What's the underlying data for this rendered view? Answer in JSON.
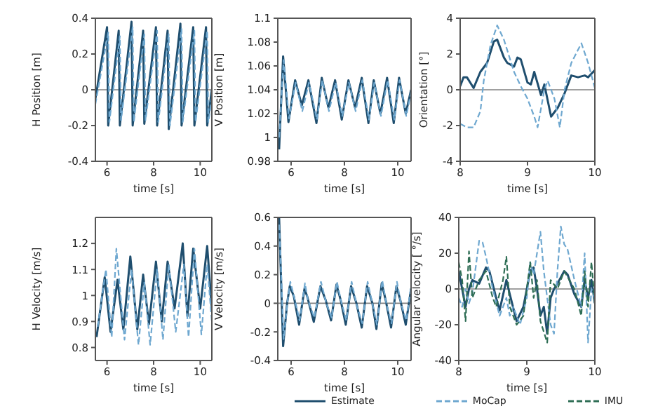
{
  "chart_data": [
    {
      "type": "line",
      "xlabel": "time [s]",
      "ylabel": "H Position [m]",
      "xlim": [
        5.5,
        10.5
      ],
      "xticks": [
        6,
        8,
        10
      ],
      "ylim": [
        -0.4,
        0.4
      ],
      "yticks": [
        -0.4,
        -0.2,
        0,
        0.2,
        0.4
      ],
      "ref_lines": [
        {
          "axis": "y",
          "value": 0,
          "color": "#808080"
        }
      ],
      "series": [
        {
          "color": "#1f4e6e",
          "line_style": "solid",
          "x": [
            5.5,
            6.0,
            6.05,
            6.5,
            6.55,
            7.05,
            7.1,
            7.55,
            7.6,
            8.1,
            8.15,
            8.6,
            8.65,
            9.15,
            9.2,
            9.7,
            9.75,
            10.25,
            10.3,
            10.5
          ],
          "values": [
            -0.05,
            0.35,
            -0.2,
            0.33,
            -0.2,
            0.38,
            -0.2,
            0.33,
            -0.19,
            0.35,
            -0.2,
            0.33,
            -0.22,
            0.37,
            -0.2,
            0.35,
            -0.2,
            0.35,
            -0.2,
            0.0
          ]
        },
        {
          "color": "#6fa8d0",
          "line_style": "dashed",
          "x": [
            5.5,
            6.05,
            6.1,
            6.55,
            6.6,
            7.1,
            7.15,
            7.6,
            7.65,
            8.15,
            8.2,
            8.65,
            8.7,
            9.2,
            9.25,
            9.75,
            9.8,
            10.3,
            10.35,
            10.5
          ],
          "values": [
            -0.08,
            0.32,
            -0.18,
            0.3,
            -0.17,
            0.35,
            -0.18,
            0.31,
            -0.17,
            0.33,
            -0.18,
            0.31,
            -0.2,
            0.34,
            -0.18,
            0.33,
            -0.18,
            0.33,
            -0.18,
            -0.05
          ]
        }
      ]
    },
    {
      "type": "line",
      "xlabel": "time [s]",
      "ylabel": "V Position [m]",
      "xlim": [
        5.5,
        10.5
      ],
      "xticks": [
        6,
        8,
        10
      ],
      "ylim": [
        0.98,
        1.1
      ],
      "yticks": [
        0.98,
        1,
        1.02,
        1.04,
        1.06,
        1.08,
        1.1
      ],
      "series": [
        {
          "color": "#1f4e6e",
          "line_style": "solid",
          "x": [
            5.55,
            5.7,
            5.9,
            6.15,
            6.4,
            6.65,
            6.95,
            7.15,
            7.4,
            7.65,
            7.9,
            8.15,
            8.4,
            8.65,
            8.9,
            9.1,
            9.35,
            9.6,
            9.85,
            10.05,
            10.3,
            10.5
          ],
          "values": [
            0.99,
            1.068,
            1.013,
            1.048,
            1.027,
            1.048,
            1.012,
            1.05,
            1.025,
            1.048,
            1.015,
            1.048,
            1.025,
            1.05,
            1.012,
            1.048,
            1.02,
            1.05,
            1.012,
            1.05,
            1.02,
            1.04
          ]
        },
        {
          "color": "#6fa8d0",
          "line_style": "dashed",
          "x": [
            5.55,
            5.72,
            5.92,
            6.17,
            6.42,
            6.67,
            6.97,
            7.17,
            7.42,
            7.67,
            7.92,
            8.17,
            8.42,
            8.67,
            8.92,
            9.12,
            9.37,
            9.62,
            9.87,
            10.07,
            10.32,
            10.5
          ],
          "values": [
            1.0,
            1.065,
            1.016,
            1.046,
            1.022,
            1.046,
            1.015,
            1.048,
            1.022,
            1.046,
            1.018,
            1.046,
            1.022,
            1.048,
            1.015,
            1.046,
            1.018,
            1.048,
            1.015,
            1.048,
            1.018,
            1.038
          ]
        }
      ]
    },
    {
      "type": "line",
      "xlabel": "time [s]",
      "ylabel": "Orientation [°]",
      "xlim": [
        8,
        10
      ],
      "xticks": [
        8,
        9,
        10
      ],
      "ylim": [
        -4,
        4
      ],
      "yticks": [
        -4,
        -2,
        0,
        2,
        4
      ],
      "ref_lines": [
        {
          "axis": "y",
          "value": 0,
          "color": "#808080"
        }
      ],
      "series": [
        {
          "color": "#1f4e6e",
          "line_style": "solid",
          "x": [
            8,
            8.05,
            8.1,
            8.2,
            8.3,
            8.4,
            8.5,
            8.55,
            8.65,
            8.7,
            8.8,
            8.85,
            8.9,
            9.0,
            9.05,
            9.1,
            9.2,
            9.25,
            9.35,
            9.45,
            9.55,
            9.65,
            9.75,
            9.85,
            9.9,
            10
          ],
          "values": [
            0.2,
            0.7,
            0.7,
            0.1,
            1,
            1.5,
            2.7,
            2.8,
            1.8,
            1.5,
            1.3,
            1.8,
            1.7,
            0.4,
            0.3,
            1.0,
            -0.3,
            0.3,
            -1.5,
            -1.0,
            -0.2,
            0.8,
            0.7,
            0.8,
            0.7,
            1.1
          ]
        },
        {
          "color": "#6fa8d0",
          "line_style": "dashed",
          "x": [
            8,
            8.1,
            8.2,
            8.3,
            8.35,
            8.45,
            8.55,
            8.65,
            8.8,
            8.9,
            9.0,
            9.1,
            9.15,
            9.25,
            9.3,
            9.4,
            9.48,
            9.55,
            9.65,
            9.8,
            9.9,
            10
          ],
          "values": [
            -1.9,
            -2.1,
            -2.1,
            -1.2,
            0.5,
            2.5,
            3.6,
            2.8,
            1.0,
            0.2,
            -0.5,
            -1.5,
            -2.1,
            0,
            0.5,
            -0.5,
            -2.1,
            0,
            1.5,
            2.6,
            1.5,
            0.1
          ]
        }
      ]
    },
    {
      "type": "line",
      "xlabel": "time [s]",
      "ylabel": "H Velocity [m/s]",
      "xlim": [
        5.5,
        10.5
      ],
      "xticks": [
        6,
        8,
        10
      ],
      "ylim": [
        0.75,
        1.3
      ],
      "yticks": [
        0.8,
        0.9,
        1,
        1.1,
        1.2
      ],
      "series": [
        {
          "color": "#1f4e6e",
          "line_style": "solid",
          "x": [
            5.55,
            5.9,
            6.15,
            6.45,
            6.7,
            7.0,
            7.3,
            7.55,
            7.8,
            8.1,
            8.35,
            8.6,
            8.9,
            9.25,
            9.45,
            9.7,
            10.0,
            10.3,
            10.5
          ],
          "values": [
            0.84,
            1.07,
            0.86,
            1.06,
            0.87,
            1.15,
            0.87,
            1.08,
            0.89,
            1.13,
            0.9,
            1.13,
            0.95,
            1.2,
            0.92,
            1.18,
            0.95,
            1.19,
            0.95
          ]
        },
        {
          "color": "#6fa8d0",
          "line_style": "dashed",
          "x": [
            5.6,
            5.95,
            6.2,
            6.4,
            6.75,
            7.05,
            7.35,
            7.6,
            7.85,
            8.15,
            8.4,
            8.65,
            8.95,
            9.3,
            9.5,
            9.75,
            10.05,
            10.3,
            10.5
          ],
          "values": [
            0.88,
            1.1,
            0.84,
            1.18,
            0.83,
            1.1,
            0.81,
            1.05,
            0.81,
            1.1,
            0.83,
            1.12,
            0.86,
            1.12,
            0.84,
            1.18,
            0.85,
            1.12,
            0.9
          ]
        }
      ]
    },
    {
      "type": "line",
      "xlabel": "time [s]",
      "ylabel": "V Velocity [m/s]",
      "xlim": [
        5.5,
        10.5
      ],
      "xticks": [
        6,
        8,
        10
      ],
      "ylim": [
        -0.4,
        0.6
      ],
      "yticks": [
        -0.4,
        -0.2,
        0,
        0.2,
        0.4,
        0.6
      ],
      "ref_lines": [
        {
          "axis": "y",
          "value": 0,
          "color": "#808080"
        }
      ],
      "series": [
        {
          "color": "#1f4e6e",
          "line_style": "solid",
          "x": [
            5.55,
            5.6,
            5.7,
            5.85,
            5.95,
            6.1,
            6.3,
            6.5,
            6.6,
            6.85,
            7.1,
            7.3,
            7.5,
            7.7,
            7.85,
            8.05,
            8.25,
            8.45,
            8.65,
            8.85,
            9.05,
            9.2,
            9.4,
            9.55,
            9.75,
            9.95,
            10.1,
            10.3,
            10.5
          ],
          "values": [
            0.6,
            0.3,
            -0.3,
            0,
            0.12,
            0.05,
            -0.15,
            0.1,
            0.05,
            -0.13,
            0.12,
            0.02,
            -0.12,
            0.13,
            0.03,
            -0.15,
            0.12,
            0,
            -0.17,
            0.12,
            0,
            -0.18,
            0.14,
            0.02,
            -0.17,
            0.12,
            0.02,
            -0.15,
            0.1
          ]
        },
        {
          "color": "#6fa8d0",
          "line_style": "dashed",
          "x": [
            5.55,
            5.62,
            5.72,
            5.87,
            5.97,
            6.12,
            6.32,
            6.52,
            6.62,
            6.87,
            7.12,
            7.32,
            7.52,
            7.72,
            7.87,
            8.07,
            8.27,
            8.47,
            8.67,
            8.87,
            9.07,
            9.22,
            9.42,
            9.57,
            9.77,
            9.97,
            10.12,
            10.32,
            10.5
          ],
          "values": [
            0.55,
            0.25,
            -0.25,
            0.02,
            0.15,
            0.04,
            -0.12,
            0.14,
            0.03,
            -0.1,
            0.15,
            0.0,
            -0.1,
            0.15,
            0.02,
            -0.12,
            0.15,
            -0.02,
            -0.14,
            0.15,
            -0.02,
            -0.15,
            0.16,
            0.0,
            -0.14,
            0.15,
            0.0,
            -0.12,
            0.12
          ]
        }
      ]
    },
    {
      "type": "line",
      "xlabel": "time [s]",
      "ylabel": "Angular velocity [ °/s]",
      "xlim": [
        8,
        10
      ],
      "xticks": [
        8,
        9,
        10
      ],
      "ylim": [
        -40,
        40
      ],
      "yticks": [
        -40,
        -20,
        0,
        20,
        40
      ],
      "legend": "bottom",
      "ref_lines": [
        {
          "axis": "y",
          "value": 0,
          "color": "#808080"
        }
      ],
      "series": [
        {
          "name": "Estimate",
          "color": "#1f4e6e",
          "line_style": "solid",
          "x": [
            8,
            8.05,
            8.1,
            8.15,
            8.2,
            8.3,
            8.4,
            8.45,
            8.55,
            8.6,
            8.7,
            8.75,
            8.85,
            8.95,
            9.05,
            9.1,
            9.15,
            9.2,
            9.25,
            9.3,
            9.35,
            9.4,
            9.45,
            9.55,
            9.6,
            9.7,
            9.8,
            9.85,
            9.9,
            9.95,
            10
          ],
          "values": [
            10,
            0,
            -10,
            0,
            5,
            3,
            12,
            10,
            -5,
            -12,
            5,
            -3,
            -18,
            -10,
            10,
            12,
            0,
            -15,
            -10,
            -25,
            -5,
            0,
            3,
            10,
            8,
            -3,
            -10,
            5,
            -5,
            5,
            -8
          ]
        },
        {
          "name": "MoCap",
          "color": "#6fa8d0",
          "line_style": "dashed",
          "x": [
            8,
            8.05,
            8.1,
            8.15,
            8.2,
            8.3,
            8.35,
            8.4,
            8.5,
            8.6,
            8.7,
            8.75,
            8.8,
            8.9,
            9.0,
            9.05,
            9.1,
            9.2,
            9.25,
            9.35,
            9.4,
            9.45,
            9.5,
            9.55,
            9.6,
            9.7,
            9.8,
            9.85,
            9.9,
            9.95,
            10
          ],
          "values": [
            -5,
            -10,
            0,
            -8,
            -2,
            27,
            26,
            18,
            0,
            -15,
            -5,
            -15,
            -10,
            -20,
            -5,
            15,
            8,
            32,
            10,
            -20,
            -25,
            10,
            35,
            25,
            22,
            5,
            -10,
            20,
            -30,
            0,
            -5
          ]
        },
        {
          "name": "IMU",
          "color": "#2f6e55",
          "line_style": "dashed",
          "x": [
            8,
            8.05,
            8.1,
            8.15,
            8.2,
            8.3,
            8.4,
            8.5,
            8.55,
            8.65,
            8.7,
            8.75,
            8.85,
            8.95,
            9.05,
            9.1,
            9.15,
            9.2,
            9.3,
            9.35,
            9.45,
            9.55,
            9.7,
            9.8,
            9.85,
            9.9,
            9.95,
            10
          ],
          "values": [
            15,
            5,
            -18,
            21,
            -5,
            5,
            10,
            -5,
            -10,
            5,
            18,
            -10,
            -20,
            -15,
            15,
            -5,
            5,
            -18,
            -30,
            5,
            0,
            10,
            0,
            -15,
            10,
            -10,
            15,
            -8
          ]
        }
      ]
    }
  ]
}
